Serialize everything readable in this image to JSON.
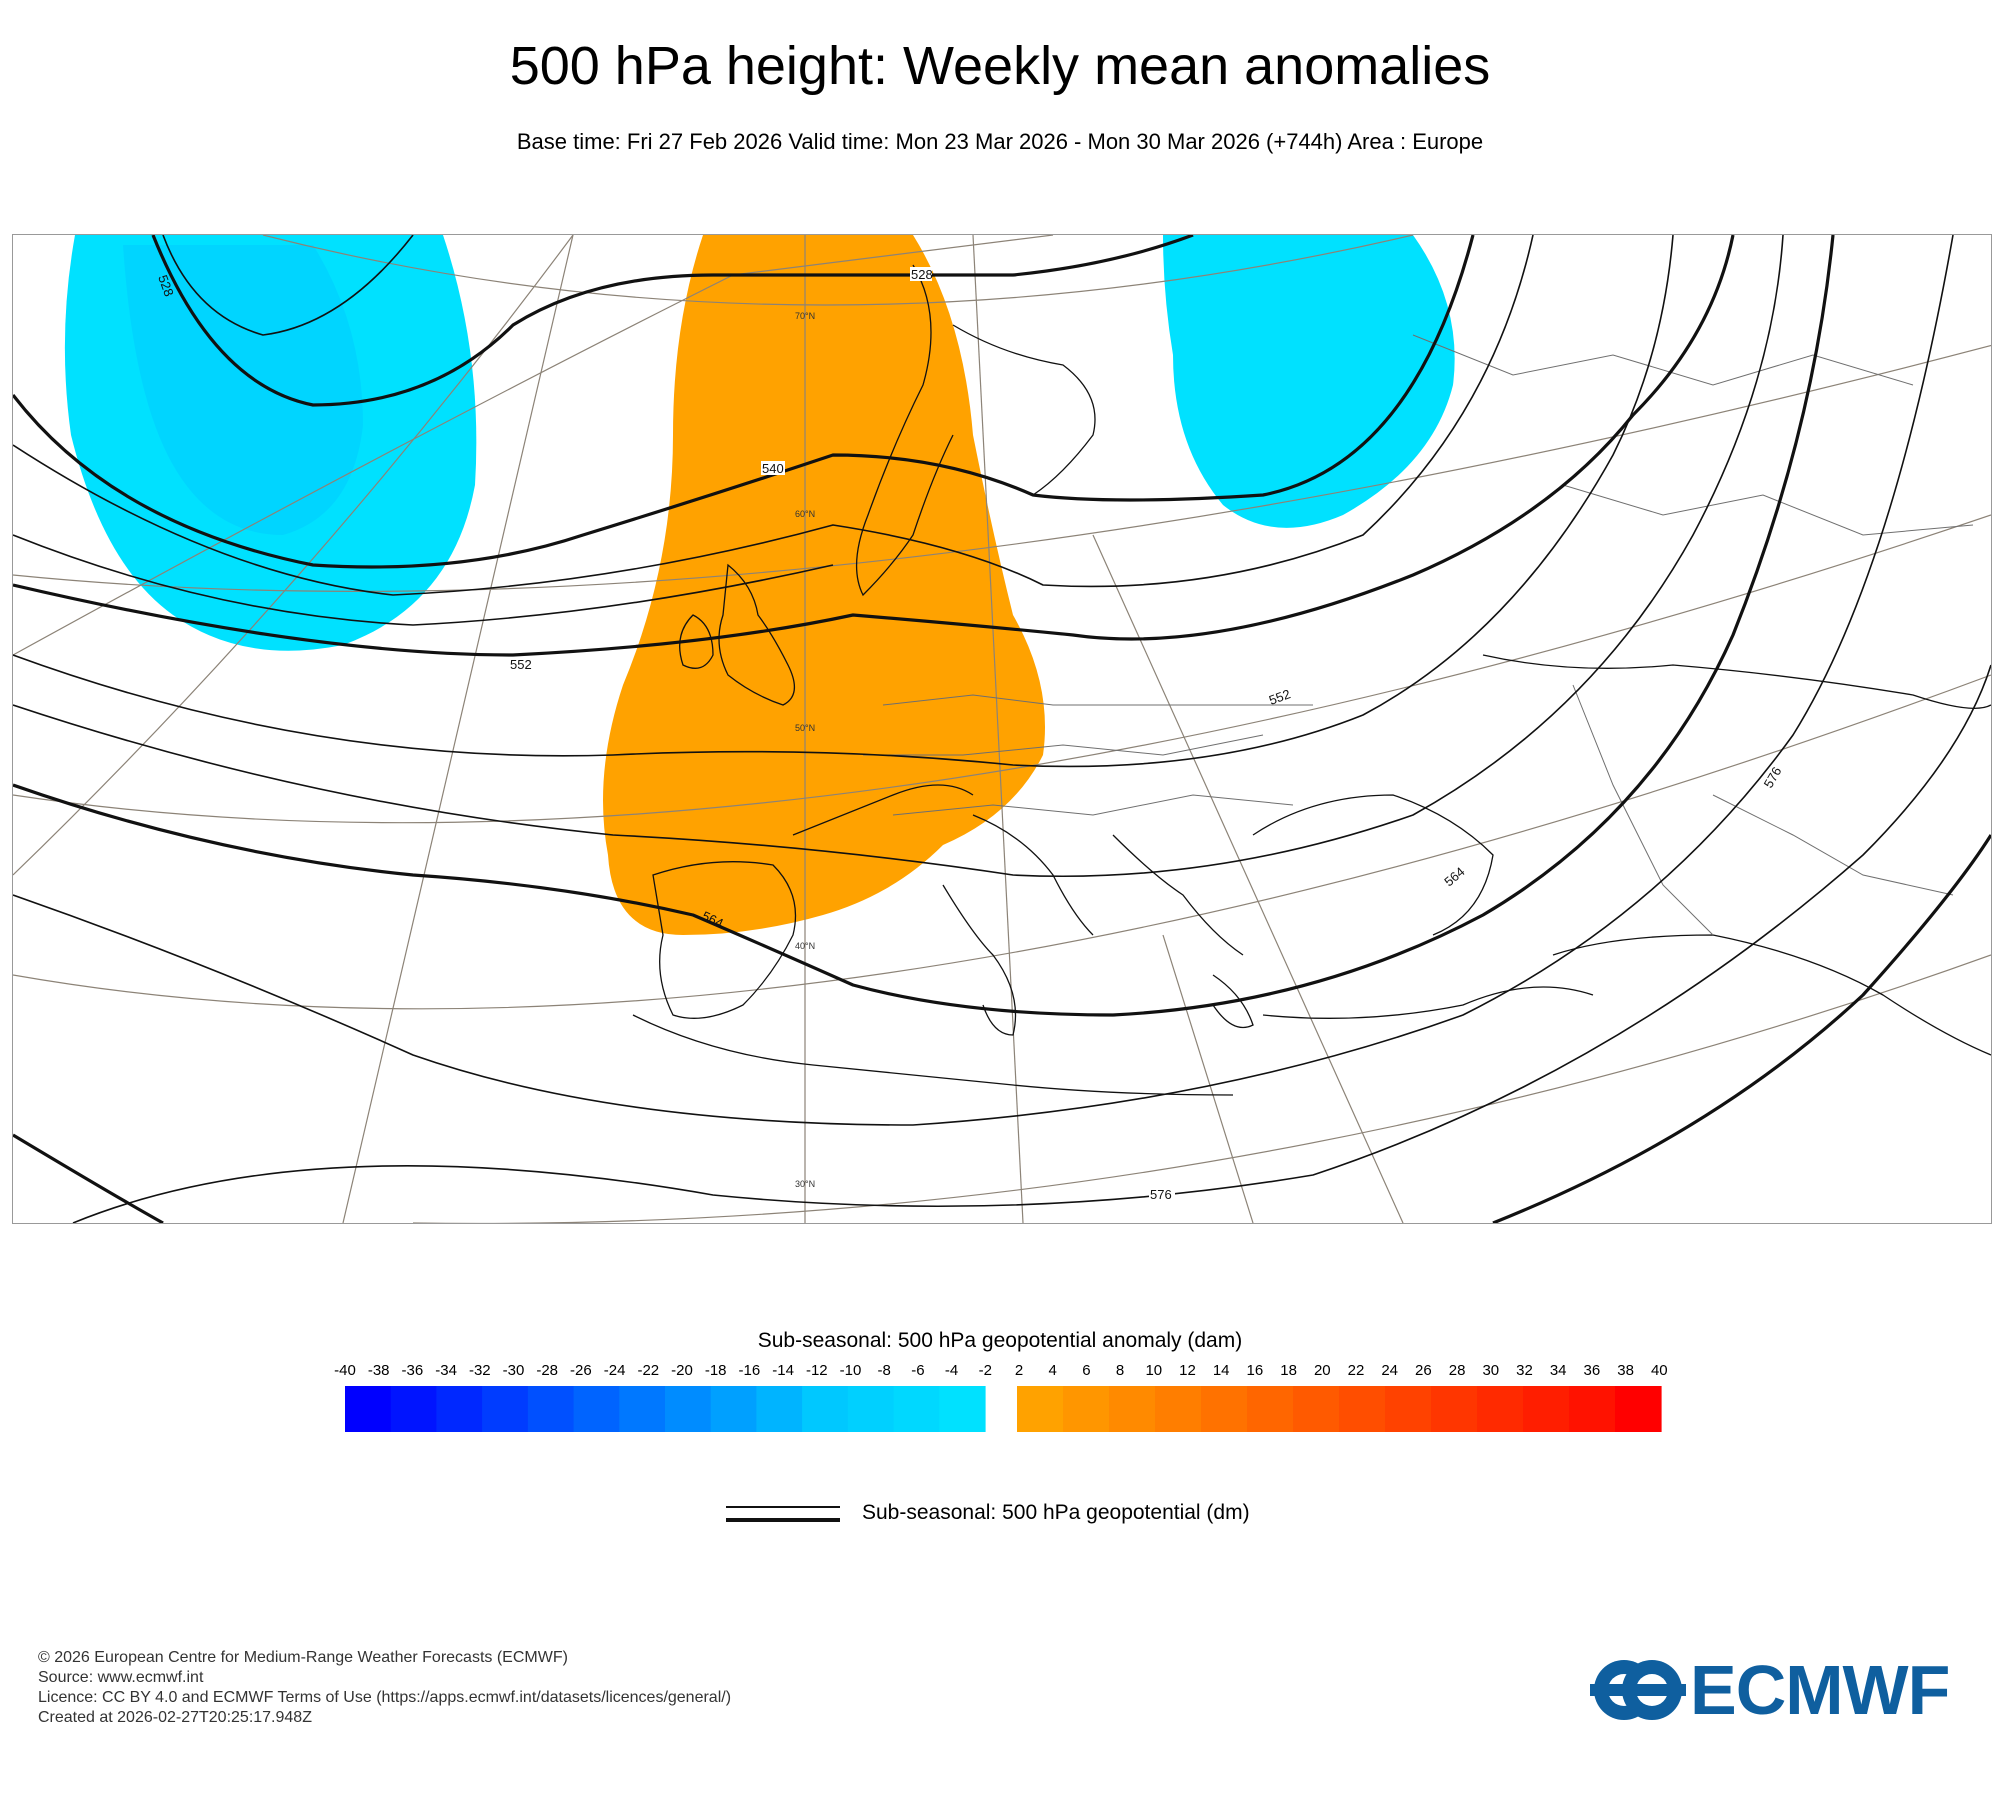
{
  "title": "500 hPa height: Weekly mean anomalies",
  "subtitle": "Base time: Fri 27 Feb 2026 Valid time: Mon 23 Mar 2026 - Mon 30 Mar 2026 (+744h) Area : Europe",
  "map": {
    "area": "Europe",
    "contour_labels": [
      "528",
      "528",
      "540",
      "552",
      "552",
      "564",
      "564",
      "576",
      "576"
    ],
    "latitude_labels": [
      "70°N",
      "60°N",
      "50°N",
      "40°N",
      "30°N"
    ],
    "anomaly_regions": [
      {
        "name": "Greenland / Labrador Sea",
        "sign": "negative",
        "range_dam": "-2 to -4",
        "color": "#00e1ff"
      },
      {
        "name": "Western Europe / Scandinavia",
        "sign": "positive",
        "range_dam": "2 to 4",
        "color": "#ffa200"
      },
      {
        "name": "Northwest Russia",
        "sign": "negative",
        "range_dam": "-2 to -4",
        "color": "#00e1ff"
      }
    ]
  },
  "colorbar": {
    "title": "Sub-seasonal: 500 hPa geopotential anomaly (dam)",
    "ticks": [
      "-40",
      "-38",
      "-36",
      "-34",
      "-32",
      "-30",
      "-28",
      "-26",
      "-24",
      "-22",
      "-20",
      "-18",
      "-16",
      "-14",
      "-12",
      "-10",
      "-8",
      "-6",
      "-4",
      "-2",
      "2",
      "4",
      "6",
      "8",
      "10",
      "12",
      "14",
      "16",
      "18",
      "20",
      "22",
      "24",
      "26",
      "28",
      "30",
      "32",
      "34",
      "36",
      "38",
      "40"
    ],
    "negative_colors": [
      "#0000ff",
      "#0014ff",
      "#0028ff",
      "#003cff",
      "#0050ff",
      "#0064ff",
      "#0078ff",
      "#008cff",
      "#00a0ff",
      "#00b4ff",
      "#00c8ff",
      "#00d0ff",
      "#00d8ff",
      "#00e1ff"
    ],
    "positive_colors": [
      "#ffa200",
      "#ff9600",
      "#ff8a00",
      "#ff7e00",
      "#ff7200",
      "#ff6600",
      "#ff5a00",
      "#ff4e00",
      "#ff4200",
      "#ff3600",
      "#ff2a00",
      "#ff1e00",
      "#ff1200",
      "#ff0000"
    ]
  },
  "legend": {
    "line_label": "Sub-seasonal: 500 hPa geopotential (dm)"
  },
  "footer": {
    "copyright": "© 2026 European Centre for Medium-Range Weather Forecasts (ECMWF)",
    "source": "Source: www.ecmwf.int",
    "licence": "Licence: CC BY 4.0 and ECMWF Terms of Use (https://apps.ecmwf.int/datasets/licences/general/)",
    "created": "Created at 2026-02-27T20:25:17.948Z"
  },
  "logo": {
    "text": "ECMWF",
    "color": "#0f5f9f"
  }
}
